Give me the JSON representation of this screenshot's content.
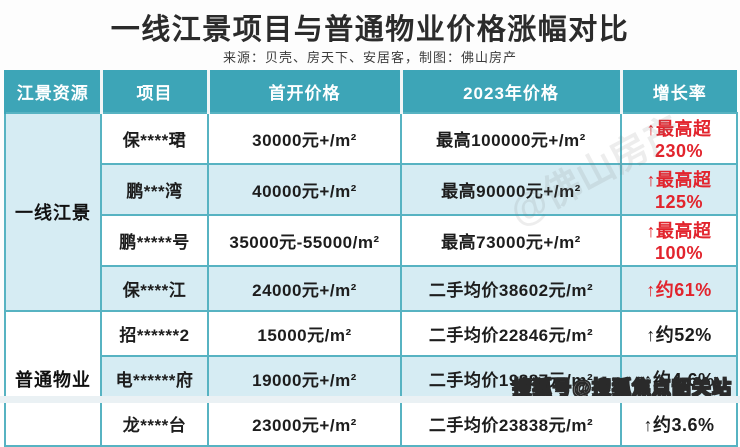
{
  "title": "一线江景项目与普通物业价格涨幅对比",
  "source": "来源：贝壳、房天下、安居客，制图：佛山房产",
  "colors": {
    "header_bg": "#3da5b7",
    "stripe_bg": "#d6ecf3",
    "border": "#57b3c2",
    "growth_red": "#e2242d",
    "text": "#1d1d1d"
  },
  "table": {
    "headers": [
      "江景资源",
      "项目",
      "首开价格",
      "2023年价格",
      "增长率"
    ],
    "groups": [
      {
        "label": "一线江景",
        "row_span": 4
      },
      {
        "label": "普通物业",
        "row_span": 3
      }
    ],
    "rows": [
      {
        "project": "保****珺",
        "first_price": "30000元+/m²",
        "price_2023": "最高100000元+/m²",
        "growth": "↑最高超230%"
      },
      {
        "project": "鹏***湾",
        "first_price": "40000元+/m²",
        "price_2023": "最高90000元+/m²",
        "growth": "↑最高超125%"
      },
      {
        "project": "鹏*****号",
        "first_price": "35000元-55000/m²",
        "price_2023": "最高73000元+/m²",
        "growth": "↑最高超100%"
      },
      {
        "project": "保****江",
        "first_price": "24000元+/m²",
        "price_2023": "二手均价38602元/m²",
        "growth": "↑约61%"
      },
      {
        "project": "招******2",
        "first_price": "15000元/m²",
        "price_2023": "二手均价22846元/m²",
        "growth": "↑约52%"
      },
      {
        "project": "电******府",
        "first_price": "19000元+/m²",
        "price_2023": "二手均价19887元/m²",
        "growth": "↑约4.6%"
      },
      {
        "project": "龙****台",
        "first_price": "23000元+/m²",
        "price_2023": "二手均价23838元/m²",
        "growth": "↑约3.6%"
      }
    ]
  },
  "watermarks": {
    "diagonal": "@佛山房产",
    "sohu": "搜狐号@搜狐焦点韶关站"
  },
  "chart_data": {
    "type": "table",
    "title": "一线江景项目与普通物业价格涨幅对比",
    "source": "来源：贝壳、房天下、安居客，制图：佛山房产",
    "columns": [
      "江景资源",
      "项目",
      "首开价格",
      "2023年价格",
      "增长率"
    ],
    "rows": [
      [
        "一线江景",
        "保****珺",
        "30000元+/m²",
        "最高100000元+/m²",
        "↑最高超230%"
      ],
      [
        "一线江景",
        "鹏***湾",
        "40000元+/m²",
        "最高90000元+/m²",
        "↑最高超125%"
      ],
      [
        "一线江景",
        "鹏*****号",
        "35000元-55000/m²",
        "最高73000元+/m²",
        "↑最高超100%"
      ],
      [
        "一线江景",
        "保****江",
        "24000元+/m²",
        "二手均价38602元/m²",
        "↑约61%"
      ],
      [
        "普通物业",
        "招******2",
        "15000元/m²",
        "二手均价22846元/m²",
        "↑约52%"
      ],
      [
        "普通物业",
        "电******府",
        "19000元+/m²",
        "二手均价19887元/m²",
        "↑约4.6%"
      ],
      [
        "普通物业",
        "龙****台",
        "23000元+/m²",
        "二手均价23838元/m²",
        "↑约3.6%"
      ]
    ],
    "growth_percent": [
      230,
      125,
      100,
      61,
      52,
      4.6,
      3.6
    ],
    "growth_is_red": [
      true,
      true,
      true,
      true,
      false,
      false,
      false
    ]
  }
}
